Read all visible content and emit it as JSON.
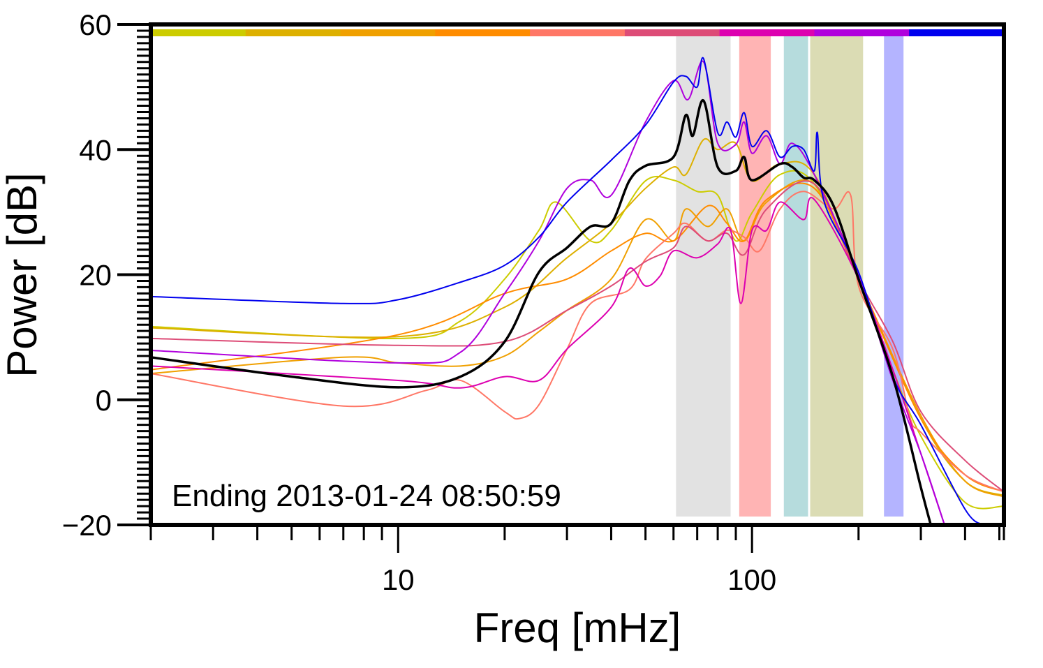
{
  "chart_data": {
    "type": "line",
    "title": "",
    "xlabel": "Freq [mHz]",
    "ylabel": "Power [dB]",
    "xscale": "log",
    "xlim": [
      2,
      515
    ],
    "ylim": [
      -20,
      60
    ],
    "yticks": [
      -20,
      0,
      20,
      40,
      60
    ],
    "ytick_labels": [
      "−20",
      "0",
      "20",
      "40",
      "60"
    ],
    "xticks": [
      10,
      100
    ],
    "xtick_labels": [
      "10",
      "100"
    ],
    "annotation": "Ending 2013-01-24 08:50:59",
    "legend": "color bar along top",
    "bands": [
      {
        "from": 61,
        "to": 87,
        "color": "#e2e2e2"
      },
      {
        "from": 92,
        "to": 113,
        "color": "#ffb4b4"
      },
      {
        "from": 123,
        "to": 144,
        "color": "#b6dcdd"
      },
      {
        "from": 146,
        "to": 206,
        "color": "#dbdcb4"
      },
      {
        "from": 236,
        "to": 268,
        "color": "#b4b4ff"
      }
    ],
    "series": [
      {
        "color": "#cccc00",
        "points": [
          [
            2,
            11.7
          ],
          [
            10,
            9.8
          ],
          [
            15,
            12.6
          ],
          [
            20,
            19.3
          ],
          [
            25,
            27.1
          ],
          [
            28,
            31.6
          ],
          [
            35,
            25.4
          ],
          [
            40,
            27.1
          ],
          [
            50,
            35
          ],
          [
            60,
            35.1
          ],
          [
            70,
            33.3
          ],
          [
            80,
            32.7
          ],
          [
            90,
            25.4
          ],
          [
            100,
            29.9
          ],
          [
            120,
            36
          ],
          [
            150,
            34.5
          ],
          [
            200,
            19.3
          ],
          [
            250,
            4.8
          ],
          [
            300,
            -5.8
          ],
          [
            400,
            -16.4
          ],
          [
            515,
            -17
          ]
        ]
      },
      {
        "color": "#ddb000",
        "points": [
          [
            2,
            11.5
          ],
          [
            10,
            10.1
          ],
          [
            20,
            14.8
          ],
          [
            30,
            22.7
          ],
          [
            40,
            28.2
          ],
          [
            50,
            33.8
          ],
          [
            60,
            37.2
          ],
          [
            65,
            36
          ],
          [
            73,
            41.6
          ],
          [
            80,
            40
          ],
          [
            90,
            41
          ],
          [
            100,
            35
          ],
          [
            120,
            37.7
          ],
          [
            150,
            36
          ],
          [
            200,
            19.3
          ],
          [
            300,
            -3
          ],
          [
            400,
            -13
          ],
          [
            515,
            -15.3
          ]
        ]
      },
      {
        "color": "#f0a000",
        "points": [
          [
            2,
            4.2
          ],
          [
            7,
            6.8
          ],
          [
            10,
            5.9
          ],
          [
            15,
            5.4
          ],
          [
            20,
            7
          ],
          [
            25,
            10.9
          ],
          [
            30,
            14.3
          ],
          [
            40,
            19.3
          ],
          [
            50,
            28.8
          ],
          [
            60,
            25.4
          ],
          [
            65,
            30.5
          ],
          [
            75,
            27.7
          ],
          [
            85,
            30.5
          ],
          [
            95,
            25.4
          ],
          [
            110,
            31.6
          ],
          [
            150,
            34.5
          ],
          [
            200,
            19.3
          ],
          [
            300,
            -2.5
          ],
          [
            400,
            -13
          ],
          [
            515,
            -15.5
          ]
        ]
      },
      {
        "color": "#ff8c00",
        "points": [
          [
            2,
            4.8
          ],
          [
            10,
            10.4
          ],
          [
            20,
            17
          ],
          [
            30,
            19.3
          ],
          [
            40,
            23.8
          ],
          [
            50,
            26.6
          ],
          [
            60,
            25.4
          ],
          [
            75,
            31
          ],
          [
            85,
            28.2
          ],
          [
            95,
            25.4
          ],
          [
            110,
            32
          ],
          [
            150,
            33.8
          ],
          [
            200,
            19.3
          ],
          [
            300,
            -3
          ],
          [
            400,
            -12
          ],
          [
            515,
            -14.7
          ]
        ]
      },
      {
        "color": "#ff7766",
        "points": [
          [
            2,
            4.2
          ],
          [
            7,
            -1
          ],
          [
            12,
            1.5
          ],
          [
            15,
            3.1
          ],
          [
            20,
            -1.9
          ],
          [
            22,
            -3
          ],
          [
            25,
            -0.8
          ],
          [
            30,
            8.1
          ],
          [
            35,
            15.4
          ],
          [
            45,
            17.6
          ],
          [
            50,
            22.5
          ],
          [
            60,
            26.6
          ],
          [
            65,
            28.2
          ],
          [
            75,
            25.4
          ],
          [
            85,
            27.1
          ],
          [
            95,
            26
          ],
          [
            105,
            23.8
          ],
          [
            120,
            30.5
          ],
          [
            140,
            33.3
          ],
          [
            170,
            30.5
          ],
          [
            190,
            32.7
          ],
          [
            200,
            18.2
          ],
          [
            250,
            8.1
          ],
          [
            280,
            -3
          ],
          [
            300,
            -5.2
          ],
          [
            400,
            -12
          ],
          [
            515,
            -14.7
          ]
        ]
      },
      {
        "color": "#dd4c77",
        "points": [
          [
            2,
            9.8
          ],
          [
            10,
            8.7
          ],
          [
            20,
            9.3
          ],
          [
            30,
            14.3
          ],
          [
            40,
            18.2
          ],
          [
            50,
            22.1
          ],
          [
            60,
            24.3
          ],
          [
            65,
            27.7
          ],
          [
            75,
            25.4
          ],
          [
            85,
            26.6
          ],
          [
            95,
            23.2
          ],
          [
            110,
            30.5
          ],
          [
            150,
            34.5
          ],
          [
            200,
            19.3
          ],
          [
            250,
            9.3
          ],
          [
            300,
            -1.9
          ],
          [
            400,
            -9.7
          ],
          [
            515,
            -14.7
          ]
        ]
      },
      {
        "color": "#dd00b0",
        "points": [
          [
            2,
            5.4
          ],
          [
            10,
            3.1
          ],
          [
            15,
            1.9
          ],
          [
            20,
            3.7
          ],
          [
            25,
            3.1
          ],
          [
            30,
            8.1
          ],
          [
            40,
            14.8
          ],
          [
            45,
            21
          ],
          [
            50,
            18.2
          ],
          [
            55,
            19.8
          ],
          [
            60,
            23.8
          ],
          [
            70,
            22.7
          ],
          [
            80,
            24.9
          ],
          [
            87,
            27.1
          ],
          [
            93,
            15.4
          ],
          [
            100,
            27.1
          ],
          [
            110,
            27.1
          ],
          [
            120,
            31.6
          ],
          [
            140,
            28.8
          ],
          [
            150,
            32
          ],
          [
            200,
            19.3
          ],
          [
            250,
            4.8
          ],
          [
            300,
            -8.6
          ],
          [
            350,
            -20
          ]
        ]
      },
      {
        "color": "#b000dd",
        "points": [
          [
            2,
            7.9
          ],
          [
            10,
            5.9
          ],
          [
            15,
            7.6
          ],
          [
            20,
            17
          ],
          [
            25,
            25.4
          ],
          [
            30,
            33.8
          ],
          [
            35,
            35.1
          ],
          [
            40,
            32.7
          ],
          [
            50,
            44.4
          ],
          [
            60,
            51
          ],
          [
            66,
            48
          ],
          [
            73,
            54
          ],
          [
            80,
            41
          ],
          [
            90,
            40.8
          ],
          [
            95,
            44.4
          ],
          [
            100,
            39.4
          ],
          [
            110,
            42.2
          ],
          [
            120,
            37.7
          ],
          [
            130,
            41
          ],
          [
            150,
            36
          ],
          [
            200,
            19.8
          ],
          [
            250,
            3.1
          ],
          [
            300,
            -8.6
          ],
          [
            350,
            -20
          ]
        ]
      },
      {
        "color": "#0000ee",
        "points": [
          [
            2,
            16.5
          ],
          [
            7,
            15.4
          ],
          [
            10,
            16
          ],
          [
            15,
            18.8
          ],
          [
            20,
            21.5
          ],
          [
            25,
            26
          ],
          [
            30,
            31.6
          ],
          [
            40,
            38.3
          ],
          [
            50,
            43.9
          ],
          [
            60,
            50.8
          ],
          [
            65,
            51.7
          ],
          [
            70,
            50
          ],
          [
            73,
            54.5
          ],
          [
            80,
            42.7
          ],
          [
            85,
            44.4
          ],
          [
            90,
            42
          ],
          [
            95,
            45.9
          ],
          [
            100,
            40.5
          ],
          [
            110,
            43
          ],
          [
            120,
            38.8
          ],
          [
            130,
            40.5
          ],
          [
            140,
            40
          ],
          [
            150,
            36.6
          ],
          [
            153,
            42.7
          ],
          [
            160,
            31.6
          ],
          [
            200,
            20.4
          ],
          [
            250,
            3.7
          ],
          [
            300,
            -4
          ],
          [
            400,
            -17.5
          ],
          [
            450,
            -20
          ]
        ]
      },
      {
        "color": "#000000",
        "width": 3.5,
        "points": [
          [
            2,
            6.8
          ],
          [
            5,
            3.7
          ],
          [
            10,
            2
          ],
          [
            15,
            3.7
          ],
          [
            20,
            9.3
          ],
          [
            25,
            20.4
          ],
          [
            30,
            24.3
          ],
          [
            35,
            27.7
          ],
          [
            40,
            28.2
          ],
          [
            45,
            35
          ],
          [
            50,
            37.4
          ],
          [
            60,
            38.8
          ],
          [
            65,
            45.5
          ],
          [
            68,
            42.2
          ],
          [
            73,
            47.8
          ],
          [
            80,
            37.2
          ],
          [
            90,
            36.6
          ],
          [
            95,
            38.8
          ],
          [
            100,
            35.1
          ],
          [
            120,
            37.7
          ],
          [
            130,
            37.2
          ],
          [
            140,
            35.5
          ],
          [
            150,
            35.1
          ],
          [
            170,
            31
          ],
          [
            200,
            19.3
          ],
          [
            250,
            3.7
          ],
          [
            300,
            -14
          ],
          [
            320,
            -20
          ]
        ]
      }
    ]
  }
}
